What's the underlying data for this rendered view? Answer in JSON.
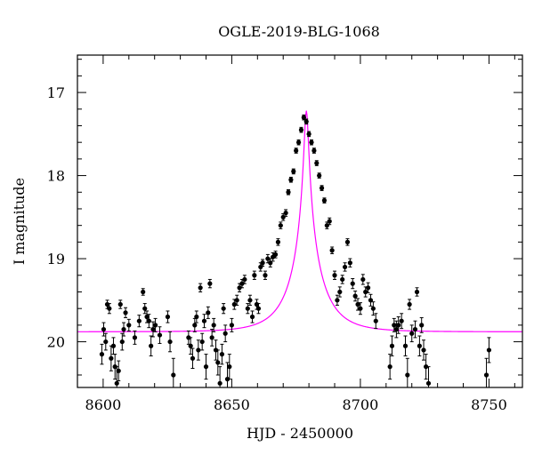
{
  "chart_data": {
    "type": "scatter",
    "title": "OGLE-2019-BLG-1068",
    "xlabel": "HJD - 2450000",
    "ylabel": "I magnitude",
    "xlim": [
      8590,
      8763
    ],
    "ylim": [
      20.55,
      16.55
    ],
    "y_inverted": true,
    "xticks": [
      8600,
      8650,
      8700,
      8750
    ],
    "yticks": [
      17,
      18,
      19,
      20
    ],
    "x_minor_step": 10,
    "y_minor_step": 0.2,
    "grid": false,
    "legend": "none",
    "colors": {
      "points": "#000000",
      "model": "#ff00ff",
      "frame": "#000000"
    },
    "series": [
      {
        "type": "scatter_with_errorbars",
        "x": [
          8599.5,
          8600.2,
          8601.0,
          8601.6,
          8602.4,
          8603.1,
          8604.0,
          8604.6,
          8605.3,
          8606.0,
          8606.7,
          8607.4,
          8608.0,
          8608.7,
          8610.0,
          8612.3,
          8614.0,
          8615.5,
          8616.2,
          8617.0,
          8617.8,
          8618.6,
          8619.4,
          8620.3,
          8622.0,
          8625.1,
          8626.0,
          8627.3,
          8633.2,
          8634.0,
          8634.8,
          8635.6,
          8636.3,
          8637.0,
          8637.8,
          8638.5,
          8639.3,
          8640.0,
          8640.8,
          8641.5,
          8642.3,
          8643.0,
          8643.8,
          8644.6,
          8645.4,
          8646.2,
          8646.8,
          8647.5,
          8648.3,
          8649.1,
          8650.0,
          8651.0,
          8652.0,
          8653.0,
          8654.0,
          8655.0,
          8656.2,
          8657.1,
          8658.0,
          8658.8,
          8659.7,
          8660.4,
          8661.2,
          8662.0,
          8663.0,
          8664.0,
          8665.0,
          8666.0,
          8667.0,
          8668.0,
          8669.0,
          8670.0,
          8671.0,
          8672.0,
          8673.0,
          8674.0,
          8675.0,
          8676.0,
          8677.0,
          8678.0,
          8679.0,
          8680.0,
          8681.0,
          8682.0,
          8683.0,
          8684.0,
          8685.0,
          8686.0,
          8687.0,
          8688.0,
          8689.0,
          8690.0,
          8691.0,
          8692.0,
          8693.0,
          8694.0,
          8695.0,
          8696.0,
          8697.0,
          8698.0,
          8699.0,
          8700.0,
          8701.0,
          8702.0,
          8703.0,
          8704.0,
          8705.0,
          8706.0,
          8711.5,
          8712.3,
          8713.1,
          8714.0,
          8714.8,
          8716.0,
          8717.5,
          8718.3,
          8719.1,
          8720.0,
          8721.3,
          8722.0,
          8723.0,
          8723.8,
          8724.6,
          8725.5,
          8726.5,
          8749.0,
          8750.0
        ],
        "y": [
          20.15,
          19.85,
          20.0,
          19.55,
          19.6,
          20.2,
          20.05,
          20.3,
          20.5,
          20.35,
          19.55,
          20.0,
          19.85,
          19.65,
          19.8,
          19.95,
          19.75,
          19.4,
          19.6,
          19.7,
          19.75,
          20.05,
          19.85,
          19.8,
          19.92,
          19.7,
          20.0,
          20.4,
          19.95,
          20.05,
          20.2,
          19.8,
          19.7,
          20.1,
          19.35,
          20.0,
          19.75,
          20.3,
          19.65,
          19.3,
          19.95,
          19.8,
          20.1,
          20.25,
          20.5,
          20.15,
          19.6,
          19.9,
          20.45,
          20.3,
          19.8,
          19.55,
          19.5,
          19.35,
          19.3,
          19.25,
          19.6,
          19.5,
          19.7,
          19.2,
          19.55,
          19.6,
          19.1,
          19.05,
          19.2,
          19.0,
          19.05,
          18.98,
          18.95,
          18.8,
          18.6,
          18.5,
          18.45,
          18.2,
          18.05,
          17.95,
          17.7,
          17.6,
          17.45,
          17.3,
          17.35,
          17.5,
          17.6,
          17.7,
          17.85,
          18.0,
          18.15,
          18.3,
          18.6,
          18.55,
          18.9,
          19.2,
          19.5,
          19.4,
          19.25,
          19.1,
          18.8,
          19.05,
          19.3,
          19.45,
          19.55,
          19.6,
          19.25,
          19.4,
          19.35,
          19.5,
          19.6,
          19.75,
          20.3,
          20.05,
          19.8,
          19.85,
          19.8,
          19.75,
          20.05,
          20.4,
          19.55,
          19.9,
          19.85,
          19.4,
          20.05,
          19.8,
          20.1,
          20.3,
          20.5,
          20.4,
          20.1
        ],
        "yerr": [
          0.12,
          0.08,
          0.1,
          0.05,
          0.06,
          0.15,
          0.1,
          0.15,
          0.2,
          0.12,
          0.05,
          0.1,
          0.08,
          0.06,
          0.07,
          0.08,
          0.07,
          0.04,
          0.06,
          0.07,
          0.08,
          0.12,
          0.09,
          0.08,
          0.1,
          0.07,
          0.12,
          0.2,
          0.08,
          0.1,
          0.12,
          0.08,
          0.07,
          0.12,
          0.05,
          0.1,
          0.08,
          0.15,
          0.07,
          0.05,
          0.1,
          0.08,
          0.12,
          0.15,
          0.2,
          0.12,
          0.06,
          0.1,
          0.2,
          0.15,
          0.08,
          0.06,
          0.06,
          0.05,
          0.05,
          0.05,
          0.06,
          0.06,
          0.07,
          0.05,
          0.06,
          0.06,
          0.05,
          0.04,
          0.05,
          0.05,
          0.05,
          0.05,
          0.04,
          0.04,
          0.04,
          0.04,
          0.04,
          0.03,
          0.03,
          0.03,
          0.03,
          0.03,
          0.03,
          0.03,
          0.03,
          0.03,
          0.03,
          0.03,
          0.03,
          0.03,
          0.03,
          0.03,
          0.04,
          0.04,
          0.04,
          0.05,
          0.06,
          0.06,
          0.05,
          0.05,
          0.04,
          0.05,
          0.06,
          0.06,
          0.07,
          0.07,
          0.06,
          0.06,
          0.06,
          0.07,
          0.08,
          0.09,
          0.15,
          0.12,
          0.08,
          0.1,
          0.1,
          0.09,
          0.12,
          0.2,
          0.06,
          0.1,
          0.1,
          0.05,
          0.12,
          0.09,
          0.12,
          0.15,
          0.2,
          0.2,
          0.15
        ]
      },
      {
        "type": "model_curve",
        "t0": 8679.0,
        "peak_mag": 17.22,
        "baseline_mag": 19.88,
        "u0": 0.06,
        "tE": 13.0
      }
    ]
  }
}
